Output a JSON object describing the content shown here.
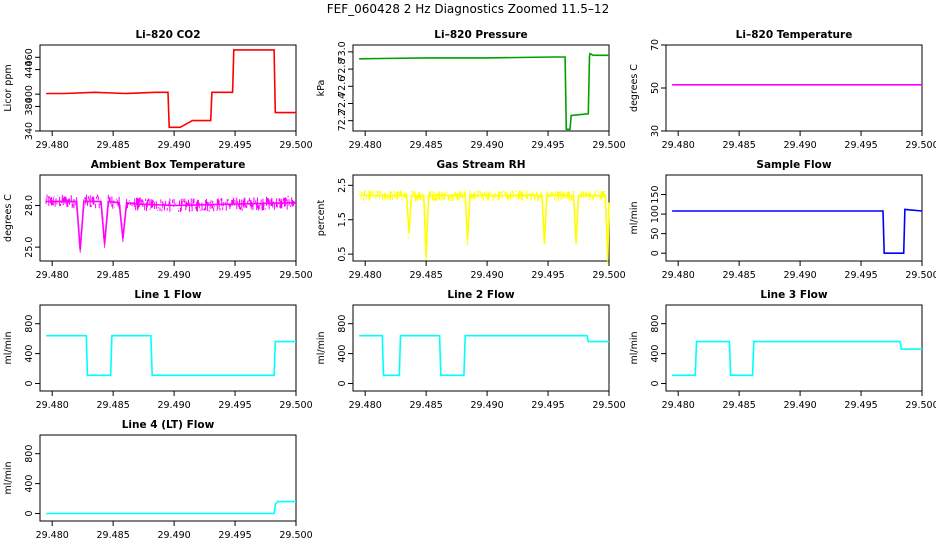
{
  "figure": {
    "title": "FEF_060428  2 Hz Diagnostics Zoomed 11.5–12"
  },
  "chart_data": [
    {
      "type": "line",
      "title": "Li–820 CO2",
      "ylabel": "Licor ppm",
      "color": "#ff0000",
      "xlim": [
        29.479,
        29.5
      ],
      "xticks": [
        29.48,
        29.485,
        29.49,
        29.495,
        29.5
      ],
      "xtick_labels": [
        "29.480",
        "29.485",
        "29.490",
        "29.495",
        "29.500"
      ],
      "ylim": [
        340,
        480
      ],
      "yticks": [
        340,
        380,
        400,
        440,
        460
      ],
      "ytick_labels": [
        "340",
        "380",
        "400",
        "440",
        "460"
      ],
      "x": [
        29.4795,
        29.481,
        29.4835,
        29.486,
        29.4885,
        29.4895,
        29.4896,
        29.4905,
        29.4915,
        29.4916,
        29.493,
        29.4931,
        29.4948,
        29.4949,
        29.4982,
        29.4983,
        29.5
      ],
      "y": [
        401,
        401,
        403,
        401,
        403,
        403,
        346,
        346,
        357,
        357,
        357,
        403,
        403,
        472,
        472,
        370,
        370
      ]
    },
    {
      "type": "line",
      "title": "Li–820 Pressure",
      "ylabel": "kPa",
      "color": "#00a000",
      "xlim": [
        29.479,
        29.5
      ],
      "xticks": [
        29.48,
        29.485,
        29.49,
        29.495,
        29.5
      ],
      "xtick_labels": [
        "29.480",
        "29.485",
        "29.490",
        "29.495",
        "29.500"
      ],
      "ylim": [
        72.08,
        73.08
      ],
      "yticks": [
        72.2,
        72.4,
        72.6,
        72.8,
        73.0
      ],
      "ytick_labels": [
        "72.2",
        "72.4",
        "72.6",
        "72.8",
        "73.0"
      ],
      "x": [
        29.4795,
        29.485,
        29.49,
        29.4955,
        29.4964,
        29.4965,
        29.4968,
        29.4969,
        29.4983,
        29.4984,
        29.49845,
        29.4987,
        29.5
      ],
      "y": [
        72.92,
        72.93,
        72.93,
        72.94,
        72.94,
        72.1,
        72.1,
        72.26,
        72.28,
        72.95,
        72.98,
        72.96,
        72.96
      ]
    },
    {
      "type": "line",
      "title": "Li–820 Temperature",
      "ylabel": "degrees C",
      "color": "#ff00ff",
      "xlim": [
        29.479,
        29.5
      ],
      "xticks": [
        29.48,
        29.485,
        29.49,
        29.495,
        29.5
      ],
      "xtick_labels": [
        "29.480",
        "29.485",
        "29.490",
        "29.495",
        "29.500"
      ],
      "ylim": [
        30,
        70
      ],
      "yticks": [
        30,
        50,
        70
      ],
      "ytick_labels": [
        "30",
        "50",
        "70"
      ],
      "x": [
        29.4795,
        29.5
      ],
      "y": [
        51.5,
        51.5
      ]
    },
    {
      "type": "line",
      "title": "Ambient Box Temperature",
      "ylabel": "degrees C",
      "color": "#ff00ff",
      "xlim": [
        29.479,
        29.5
      ],
      "xticks": [
        29.48,
        29.485,
        29.49,
        29.495,
        29.5
      ],
      "xtick_labels": [
        "29.480",
        "29.485",
        "29.490",
        "29.495",
        "29.500"
      ],
      "ylim": [
        24.0,
        30.2
      ],
      "yticks": [
        25.0,
        28.0
      ],
      "ytick_labels": [
        "25.0",
        "28.0"
      ],
      "noise": 1.0,
      "x": [
        29.4795,
        29.482,
        29.4823,
        29.4826,
        29.484,
        29.4843,
        29.4846,
        29.4855,
        29.4858,
        29.4861,
        29.487,
        29.49,
        29.495,
        29.5
      ],
      "y": [
        28.3,
        28.3,
        24.8,
        28.3,
        28.3,
        25.2,
        28.3,
        28.2,
        25.6,
        28.2,
        28.1,
        28.0,
        28.1,
        28.2
      ]
    },
    {
      "type": "line",
      "title": "Gas Stream RH",
      "ylabel": "percent",
      "color": "#ffff00",
      "xlim": [
        29.479,
        29.5
      ],
      "xticks": [
        29.48,
        29.485,
        29.49,
        29.495,
        29.5
      ],
      "xtick_labels": [
        "29.480",
        "29.485",
        "29.490",
        "29.495",
        "29.500"
      ],
      "ylim": [
        0.3,
        2.8
      ],
      "yticks": [
        0.5,
        1.5,
        2.5
      ],
      "ytick_labels": [
        "0.5",
        "1.5",
        "2.5"
      ],
      "noise": 0.32,
      "x": [
        29.4795,
        29.4834,
        29.4836,
        29.4838,
        29.4848,
        29.485,
        29.4852,
        29.4882,
        29.4884,
        29.4886,
        29.4945,
        29.4947,
        29.4949,
        29.4971,
        29.4973,
        29.4975,
        29.4997,
        29.4999,
        29.5
      ],
      "y": [
        2.2,
        2.2,
        1.1,
        2.2,
        2.2,
        0.4,
        2.2,
        2.2,
        0.9,
        2.2,
        2.2,
        0.8,
        2.2,
        2.2,
        0.8,
        2.2,
        2.2,
        0.35,
        2.0
      ]
    },
    {
      "type": "line",
      "title": "Sample Flow",
      "ylabel": "ml/min",
      "color": "#0000ff",
      "xlim": [
        29.479,
        29.5
      ],
      "xticks": [
        29.48,
        29.485,
        29.49,
        29.495,
        29.5
      ],
      "xtick_labels": [
        "29.480",
        "29.485",
        "29.490",
        "29.495",
        "29.500"
      ],
      "ylim": [
        -20,
        200
      ],
      "yticks": [
        0,
        50,
        100,
        150
      ],
      "ytick_labels": [
        "0",
        "50",
        "100",
        "150"
      ],
      "x": [
        29.4795,
        29.49,
        29.4968,
        29.4969,
        29.4985,
        29.4986,
        29.5
      ],
      "y": [
        108,
        108,
        108,
        0,
        0,
        112,
        108
      ]
    },
    {
      "type": "line",
      "title": "Line 1 Flow",
      "ylabel": "ml/min",
      "color": "#00ffff",
      "xlim": [
        29.479,
        29.5
      ],
      "xticks": [
        29.48,
        29.485,
        29.49,
        29.495,
        29.5
      ],
      "xtick_labels": [
        "29.480",
        "29.485",
        "29.490",
        "29.495",
        "29.500"
      ],
      "ylim": [
        -100,
        1050
      ],
      "yticks": [
        0,
        400,
        800
      ],
      "ytick_labels": [
        "0",
        "400",
        "800"
      ],
      "x": [
        29.4795,
        29.4828,
        29.4829,
        29.4848,
        29.4849,
        29.4881,
        29.4882,
        29.4982,
        29.4983,
        29.5
      ],
      "y": [
        640,
        640,
        110,
        110,
        640,
        640,
        110,
        110,
        560,
        560
      ]
    },
    {
      "type": "line",
      "title": "Line 2 Flow",
      "ylabel": "ml/min",
      "color": "#00ffff",
      "xlim": [
        29.479,
        29.5
      ],
      "xticks": [
        29.48,
        29.485,
        29.49,
        29.495,
        29.5
      ],
      "xtick_labels": [
        "29.480",
        "29.485",
        "29.490",
        "29.495",
        "29.500"
      ],
      "ylim": [
        -100,
        1050
      ],
      "yticks": [
        0,
        400,
        800
      ],
      "ytick_labels": [
        "0",
        "400",
        "800"
      ],
      "x": [
        29.4795,
        29.4814,
        29.4815,
        29.4828,
        29.4829,
        29.4861,
        29.4862,
        29.4881,
        29.4882,
        29.4982,
        29.4983,
        29.5
      ],
      "y": [
        640,
        640,
        110,
        110,
        640,
        640,
        110,
        110,
        640,
        640,
        560,
        560
      ]
    },
    {
      "type": "line",
      "title": "Line 3 Flow",
      "ylabel": "ml/min",
      "color": "#00ffff",
      "xlim": [
        29.479,
        29.5
      ],
      "xticks": [
        29.48,
        29.485,
        29.49,
        29.495,
        29.5
      ],
      "xtick_labels": [
        "29.480",
        "29.485",
        "29.490",
        "29.495",
        "29.500"
      ],
      "ylim": [
        -100,
        1050
      ],
      "yticks": [
        0,
        400,
        800
      ],
      "ytick_labels": [
        "0",
        "400",
        "800"
      ],
      "x": [
        29.4795,
        29.4814,
        29.4815,
        29.4842,
        29.4843,
        29.4861,
        29.4862,
        29.4982,
        29.4983,
        29.5
      ],
      "y": [
        110,
        110,
        560,
        560,
        110,
        110,
        560,
        560,
        460,
        460
      ]
    },
    {
      "type": "line",
      "title": "Line 4 (LT) Flow",
      "ylabel": "ml/min",
      "color": "#00ffff",
      "xlim": [
        29.479,
        29.5
      ],
      "xticks": [
        29.48,
        29.485,
        29.49,
        29.495,
        29.5
      ],
      "xtick_labels": [
        "29.480",
        "29.485",
        "29.490",
        "29.495",
        "29.500"
      ],
      "ylim": [
        -100,
        1050
      ],
      "yticks": [
        0,
        400,
        800
      ],
      "ytick_labels": [
        "0",
        "400",
        "800"
      ],
      "x": [
        29.4795,
        29.4982,
        29.4983,
        29.4985,
        29.5
      ],
      "y": [
        0,
        0,
        120,
        160,
        160
      ]
    }
  ]
}
